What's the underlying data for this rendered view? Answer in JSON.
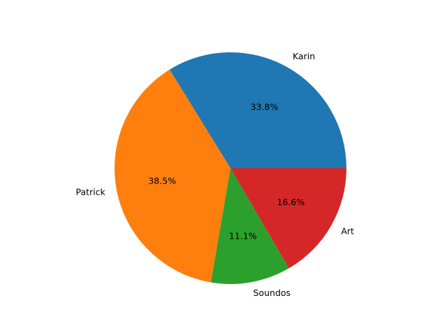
{
  "chart_data": {
    "type": "pie",
    "labels": [
      "Karin",
      "Patrick",
      "Soundos",
      "Art"
    ],
    "values": [
      33.8,
      38.5,
      11.1,
      16.6
    ],
    "percent_labels": [
      "33.8%",
      "38.5%",
      "11.1%",
      "16.6%"
    ],
    "colors": [
      "#1f77b4",
      "#ff7f0e",
      "#2ca02c",
      "#d62728"
    ],
    "start_angle_deg": 0,
    "direction": "counterclockwise"
  }
}
